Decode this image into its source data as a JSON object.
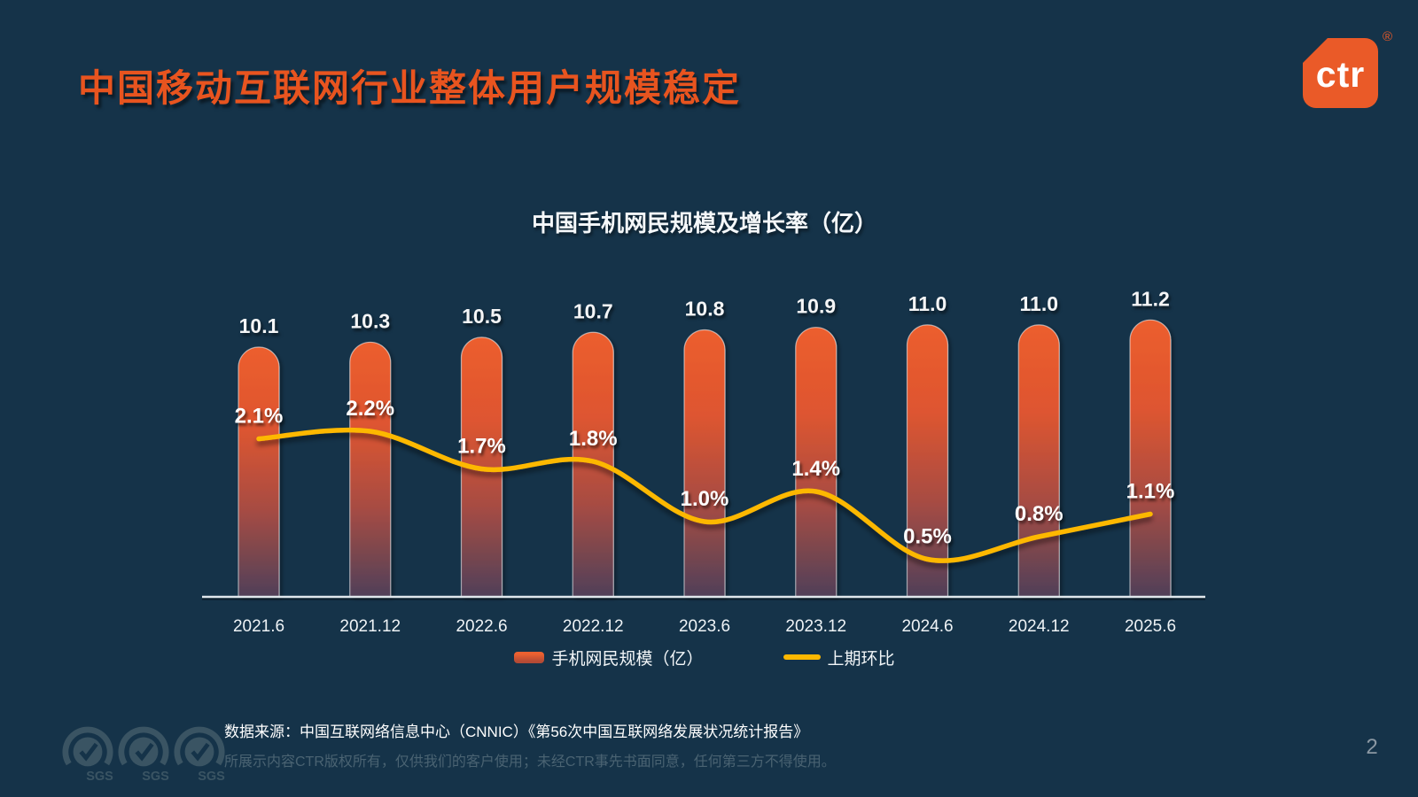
{
  "slide": {
    "title": "中国移动互联网行业整体用户规模稳定",
    "page_number": "2",
    "source": "数据来源：中国互联网络信息中心（CNNIC）《第56次中国互联网络发展状况统计报告》",
    "disclaimer": "所展示内容CTR版权所有，仅供我们的客户使用；未经CTR事先书面同意，任何第三方不得使用。"
  },
  "logo": {
    "text": "ctr",
    "registered_mark": "®"
  },
  "sgs": {
    "label": "SGS"
  },
  "colors": {
    "background": "#153349",
    "title_orange": "#e8541f",
    "bar_gradient": [
      "#ec5e2d",
      "#de5530",
      "#a74c43",
      "#504059"
    ],
    "bar_edge": "rgba(255,255,255,0.55)",
    "line_yellow": "#fdb800",
    "axis_line": "#dfe7ec",
    "label_white": "#ffffff"
  },
  "chart_data": {
    "type": "combo",
    "title": "中国手机网民规模及增长率（亿）",
    "categories": [
      "2021.6",
      "2021.12",
      "2022.6",
      "2022.12",
      "2023.6",
      "2023.12",
      "2024.6",
      "2024.12",
      "2025.6"
    ],
    "series": [
      {
        "name": "手机网民规模（亿）",
        "type": "bar",
        "unit": "亿",
        "values": [
          10.1,
          10.3,
          10.5,
          10.7,
          10.8,
          10.9,
          11.0,
          11.0,
          11.2
        ],
        "labels": [
          "10.1",
          "10.3",
          "10.5",
          "10.7",
          "10.8",
          "10.9",
          "11.0",
          "11.0",
          "11.2"
        ]
      },
      {
        "name": "上期环比",
        "type": "line",
        "unit": "%",
        "values": [
          2.1,
          2.2,
          1.7,
          1.8,
          1.0,
          1.4,
          0.5,
          0.8,
          1.1
        ],
        "labels": [
          "2.1%",
          "2.2%",
          "1.7%",
          "1.8%",
          "1.0%",
          "1.4%",
          "0.5%",
          "0.8%",
          "1.1%"
        ]
      }
    ],
    "bar_axis_baseline": 0,
    "grid": false,
    "legend_position": "bottom"
  }
}
